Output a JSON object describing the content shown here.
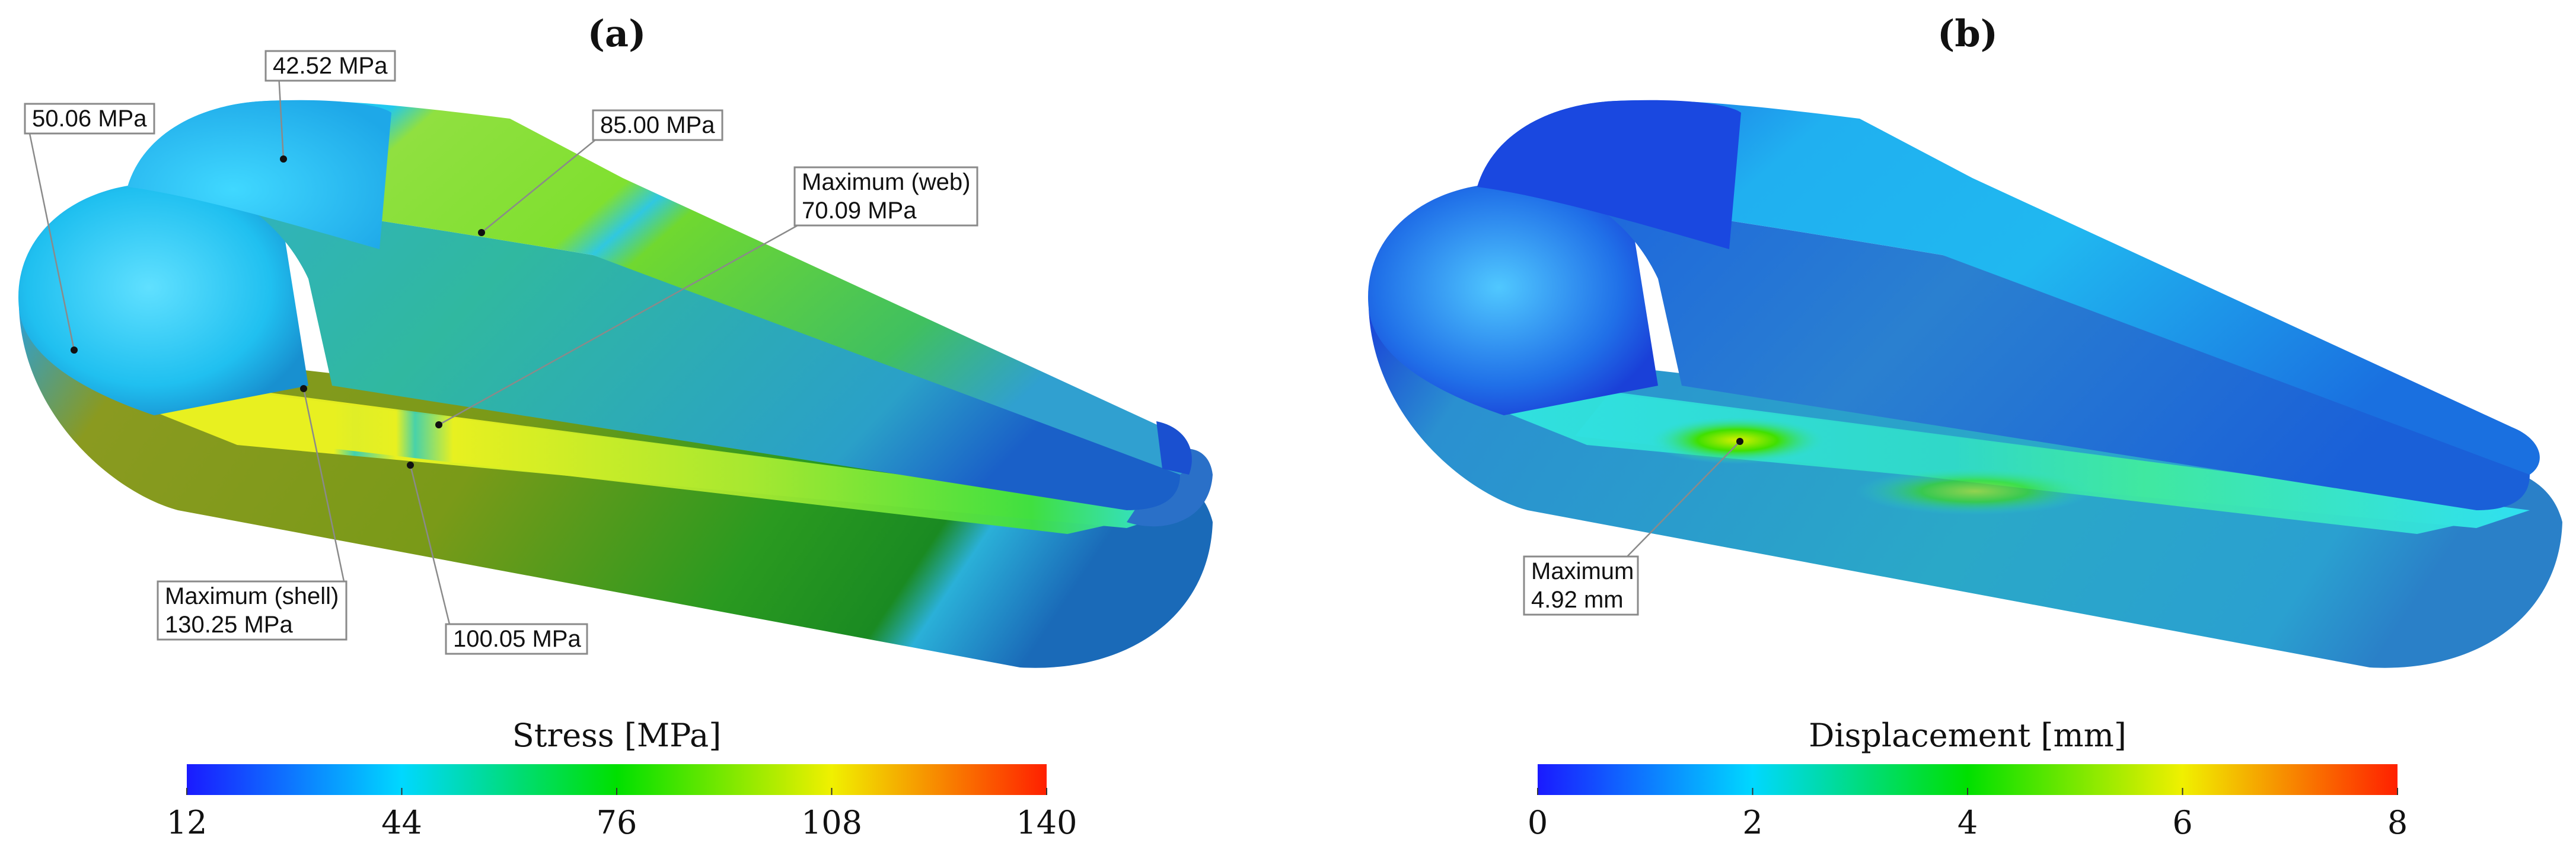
{
  "panels": [
    {
      "id": "a",
      "title": "(a)",
      "colorbar": {
        "title": "Stress [MPa]",
        "ticks": [
          "12",
          "44",
          "76",
          "108",
          "140"
        ],
        "range": [
          12,
          140
        ],
        "colormap": [
          "#1a1aff",
          "#00e5ff",
          "#00e000",
          "#f0f000",
          "#ff2000"
        ]
      },
      "annotations": [
        {
          "key": "a1",
          "lines": [
            "42.52 MPa"
          ]
        },
        {
          "key": "a2",
          "lines": [
            "50.06 MPa"
          ]
        },
        {
          "key": "a3",
          "lines": [
            "85.00 MPa"
          ]
        },
        {
          "key": "a4",
          "lines": [
            "Maximum (web)",
            "70.09 MPa"
          ]
        },
        {
          "key": "a5",
          "lines": [
            "Maximum (shell)",
            "130.25 MPa"
          ]
        },
        {
          "key": "a6",
          "lines": [
            "100.05 MPa"
          ]
        }
      ]
    },
    {
      "id": "b",
      "title": "(b)",
      "colorbar": {
        "title": "Displacement [mm]",
        "ticks": [
          "0",
          "2",
          "4",
          "6",
          "8"
        ],
        "range": [
          0,
          8
        ],
        "colormap": [
          "#1a1aff",
          "#00e5ff",
          "#00e000",
          "#f0f000",
          "#ff2000"
        ]
      },
      "annotations": [
        {
          "key": "b1",
          "lines": [
            "Maximum",
            "4.92 mm"
          ]
        }
      ]
    }
  ]
}
